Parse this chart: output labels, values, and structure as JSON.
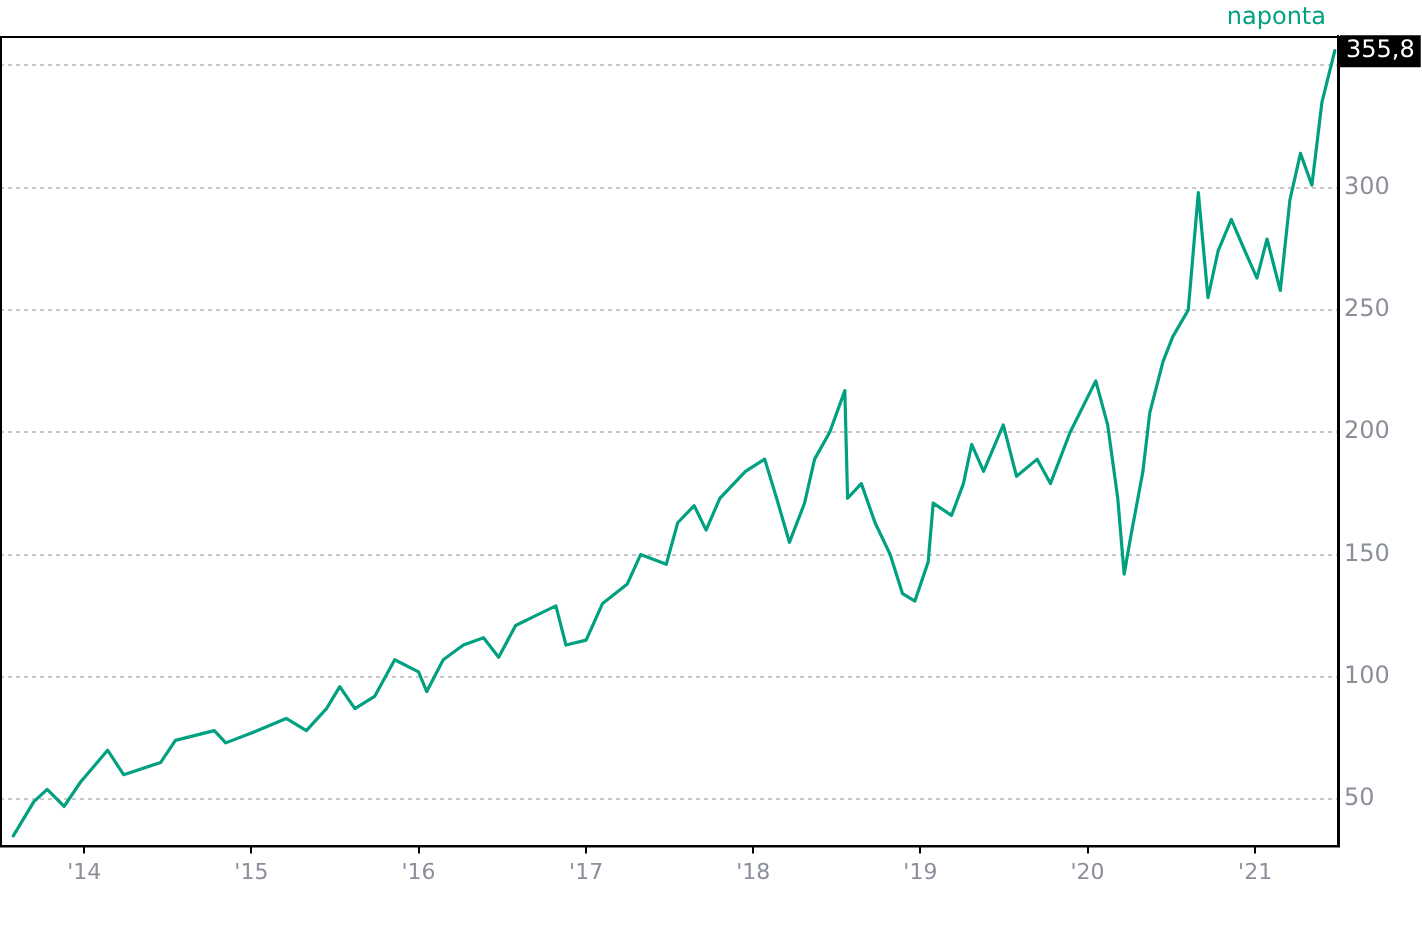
{
  "chart_data": {
    "type": "line",
    "x": [
      "2013-07-30",
      "2013-09-13",
      "2013-10-12",
      "2013-11-18",
      "2013-12-24",
      "2014-02-21",
      "2014-03-28",
      "2014-06-17",
      "2014-07-19",
      "2014-10-12",
      "2014-11-06",
      "2015-01-01",
      "2015-03-18",
      "2015-05-01",
      "2015-06-14",
      "2015-07-13",
      "2015-08-15",
      "2015-09-27",
      "2015-11-10",
      "2016-01-01",
      "2016-01-19",
      "2016-02-24",
      "2016-04-08",
      "2016-05-22",
      "2016-06-24",
      "2016-07-31",
      "2016-09-13",
      "2016-10-27",
      "2016-11-18",
      "2017-01-01",
      "2017-02-06",
      "2017-04-01",
      "2017-04-30",
      "2017-06-25",
      "2017-07-20",
      "2017-08-25",
      "2017-09-20",
      "2017-10-20",
      "2017-12-15",
      "2018-01-26",
      "2018-02-21",
      "2018-03-21",
      "2018-04-23",
      "2018-05-15",
      "2018-06-17",
      "2018-07-20",
      "2018-07-26",
      "2018-08-25",
      "2018-09-24",
      "2018-10-27",
      "2018-11-23",
      "2018-12-20",
      "2019-01-18",
      "2019-01-29",
      "2019-03-10",
      "2019-04-05",
      "2019-04-23",
      "2019-05-19",
      "2019-07-01",
      "2019-07-30",
      "2019-09-13",
      "2019-10-12",
      "2019-11-24",
      "2020-01-19",
      "2020-02-14",
      "2020-03-07",
      "2020-03-21",
      "2020-04-05",
      "2020-05-01",
      "2020-05-16",
      "2020-06-14",
      "2020-07-05",
      "2020-08-08",
      "2020-08-30",
      "2020-09-20",
      "2020-10-12",
      "2020-11-10",
      "2020-12-10",
      "2021-01-05",
      "2021-01-27",
      "2021-02-25",
      "2021-03-18",
      "2021-04-10",
      "2021-05-05",
      "2021-05-27",
      "2021-06-24"
    ],
    "series": [
      {
        "color": "#00a080",
        "values": [
          35,
          49,
          54,
          47,
          57,
          70,
          60,
          65,
          74,
          78,
          73,
          77,
          83,
          78,
          87,
          96,
          87,
          92,
          107,
          102,
          94,
          107,
          113,
          116,
          108,
          121,
          125,
          129,
          113,
          115,
          130,
          138,
          150,
          146,
          163,
          170,
          160,
          173,
          184,
          189,
          173,
          155,
          171,
          189,
          200,
          217,
          173,
          179,
          163,
          150,
          134,
          131,
          147,
          171,
          166,
          179,
          195,
          184,
          203,
          182,
          189,
          179,
          200,
          221,
          203,
          173,
          142,
          158,
          184,
          208,
          229,
          239,
          250,
          298,
          255,
          274,
          287,
          274,
          263,
          279,
          258,
          295,
          314,
          301,
          335,
          356
        ]
      }
    ],
    "xlim": [
      "2013-07-01",
      "2021-07-01"
    ],
    "xticks": [
      {
        "value": "2014-01-01",
        "label": "'14"
      },
      {
        "value": "2015-01-01",
        "label": "'15"
      },
      {
        "value": "2016-01-01",
        "label": "'16"
      },
      {
        "value": "2017-01-01",
        "label": "'17"
      },
      {
        "value": "2018-01-01",
        "label": "'18"
      },
      {
        "value": "2019-01-01",
        "label": "'19"
      },
      {
        "value": "2020-01-01",
        "label": "'20"
      },
      {
        "value": "2021-01-01",
        "label": "'21"
      }
    ],
    "ylim": [
      31,
      362
    ],
    "yticks": [
      50,
      100,
      150,
      200,
      250,
      300,
      {
        "value": 350,
        "label": null
      }
    ],
    "grid": "y",
    "legend": false,
    "marker": "none",
    "line_style": "solid",
    "annotations": [
      "naponta",
      {
        "text": "355,8",
        "x": "2021-06-24",
        "y": 355.8
      }
    ]
  }
}
